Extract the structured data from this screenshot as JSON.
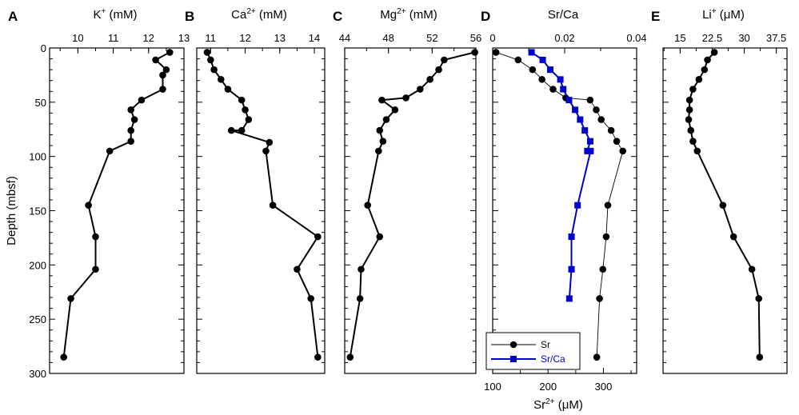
{
  "figure": {
    "y_axis_label": "Depth (mbsf)",
    "y_ticks": [
      0,
      50,
      100,
      150,
      200,
      250,
      300
    ],
    "ylim": [
      0,
      300
    ],
    "y_reversed": true
  },
  "chart_data": [
    {
      "type": "line",
      "letter": "A",
      "title_main": "K",
      "title_sup": "+",
      "title_unit": " (mM)",
      "xlim": [
        9.2,
        13
      ],
      "x_ticks": [
        10,
        11,
        12,
        13
      ],
      "x_tick_labels": [
        "10",
        "11",
        "12",
        "13"
      ],
      "series": [
        {
          "color": "#000000",
          "marker": "circle",
          "points": [
            [
              12.6,
              4
            ],
            [
              12.2,
              11
            ],
            [
              12.5,
              20
            ],
            [
              12.4,
              25
            ],
            [
              12.4,
              38
            ],
            [
              11.8,
              48
            ],
            [
              11.5,
              57
            ],
            [
              11.6,
              66
            ],
            [
              11.5,
              76
            ],
            [
              11.5,
              86
            ],
            [
              10.9,
              95
            ],
            [
              10.3,
              145
            ],
            [
              10.5,
              174
            ],
            [
              10.5,
              204
            ],
            [
              9.8,
              231
            ],
            [
              9.6,
              285
            ]
          ]
        }
      ]
    },
    {
      "type": "line",
      "letter": "B",
      "title_main": "Ca",
      "title_sup": "2+",
      "title_unit": " (mM)",
      "xlim": [
        10.6,
        14.3
      ],
      "x_ticks": [
        11,
        12,
        13,
        14
      ],
      "x_tick_labels": [
        "11",
        "12",
        "13",
        "14"
      ],
      "series": [
        {
          "color": "#000000",
          "marker": "circle",
          "points": [
            [
              10.9,
              4
            ],
            [
              11.0,
              11
            ],
            [
              11.1,
              20
            ],
            [
              11.3,
              29
            ],
            [
              11.5,
              38
            ],
            [
              11.9,
              48
            ],
            [
              12.0,
              57
            ],
            [
              12.1,
              66
            ],
            [
              11.9,
              76
            ],
            [
              11.6,
              76
            ],
            [
              12.7,
              87
            ],
            [
              12.6,
              95
            ],
            [
              12.8,
              145
            ],
            [
              14.1,
              174
            ],
            [
              13.5,
              204
            ],
            [
              13.9,
              231
            ],
            [
              14.1,
              285
            ]
          ]
        }
      ]
    },
    {
      "type": "line",
      "letter": "C",
      "title_main": "Mg",
      "title_sup": "2+",
      "title_unit": " (mM)",
      "xlim": [
        44,
        56
      ],
      "x_ticks": [
        44,
        48,
        52,
        56
      ],
      "x_tick_labels": [
        "44",
        "48",
        "52",
        "56"
      ],
      "series": [
        {
          "color": "#000000",
          "marker": "circle",
          "points": [
            [
              55.9,
              4
            ],
            [
              53.1,
              11
            ],
            [
              52.6,
              20
            ],
            [
              51.8,
              29
            ],
            [
              50.9,
              38
            ],
            [
              49.6,
              46
            ],
            [
              47.4,
              48
            ],
            [
              48.6,
              57
            ],
            [
              47.8,
              66
            ],
            [
              47.2,
              76
            ],
            [
              47.5,
              86
            ],
            [
              47.1,
              95
            ],
            [
              46.1,
              145
            ],
            [
              47.2,
              174
            ],
            [
              45.5,
              204
            ],
            [
              45.4,
              231
            ],
            [
              44.5,
              285
            ]
          ]
        }
      ]
    },
    {
      "type": "line",
      "letter": "D",
      "title_main": "Sr/Ca",
      "title_sup": "",
      "title_unit": "",
      "xlim": [
        0,
        0.04
      ],
      "x_ticks": [
        0,
        0.02,
        0.04
      ],
      "x_tick_labels": [
        "0",
        "0.02",
        "0.04"
      ],
      "bottom_label_main": "Sr",
      "bottom_label_sup": "2+",
      "bottom_label_unit": " (μM)",
      "bottom_xlim": [
        100,
        360
      ],
      "bottom_ticks": [
        100,
        200,
        300
      ],
      "bottom_tick_labels": [
        "100",
        "200",
        "300"
      ],
      "legend": [
        "Sr",
        "Sr/Ca"
      ],
      "series": [
        {
          "name": "Sr",
          "color": "#000000",
          "marker": "circle",
          "axis": "bottom",
          "points": [
            [
              106,
              4
            ],
            [
              146,
              11
            ],
            [
              172,
              20
            ],
            [
              189,
              29
            ],
            [
              209,
              38
            ],
            [
              232,
              46
            ],
            [
              276,
              48
            ],
            [
              287,
              57
            ],
            [
              296,
              66
            ],
            [
              314,
              76
            ],
            [
              324,
              86
            ],
            [
              335,
              95
            ],
            [
              308,
              145
            ],
            [
              305,
              174
            ],
            [
              299,
              204
            ],
            [
              293,
              231
            ],
            [
              288,
              285
            ]
          ]
        },
        {
          "name": "Sr/Ca",
          "color": "#0000cc",
          "marker": "square",
          "axis": "top",
          "points": [
            [
              0.0108,
              4
            ],
            [
              0.0139,
              11
            ],
            [
              0.016,
              20
            ],
            [
              0.0188,
              29
            ],
            [
              0.0196,
              38
            ],
            [
              0.0212,
              48
            ],
            [
              0.0229,
              57
            ],
            [
              0.0243,
              66
            ],
            [
              0.0256,
              76
            ],
            [
              0.0271,
              86
            ],
            [
              0.0263,
              95
            ],
            [
              0.0272,
              95
            ],
            [
              0.0236,
              145
            ],
            [
              0.0219,
              174
            ],
            [
              0.0219,
              204
            ],
            [
              0.0213,
              231
            ]
          ]
        }
      ]
    },
    {
      "type": "line",
      "letter": "E",
      "title_main": "Li",
      "title_sup": "+",
      "title_unit": " (μM)",
      "xlim": [
        11,
        40
      ],
      "x_ticks": [
        15,
        22.5,
        30,
        37.5
      ],
      "x_tick_labels": [
        "15",
        "22.5",
        "30",
        "37.5"
      ],
      "series": [
        {
          "color": "#000000",
          "marker": "circle",
          "points": [
            [
              23.0,
              4
            ],
            [
              21.4,
              11
            ],
            [
              20.7,
              20
            ],
            [
              19.4,
              29
            ],
            [
              18.0,
              38
            ],
            [
              17.2,
              48
            ],
            [
              17.2,
              57
            ],
            [
              17.0,
              66
            ],
            [
              17.5,
              76
            ],
            [
              18.0,
              86
            ],
            [
              19.0,
              95
            ],
            [
              25.0,
              145
            ],
            [
              27.5,
              174
            ],
            [
              31.8,
              204
            ],
            [
              33.4,
              231
            ],
            [
              33.6,
              285
            ]
          ]
        }
      ]
    }
  ]
}
